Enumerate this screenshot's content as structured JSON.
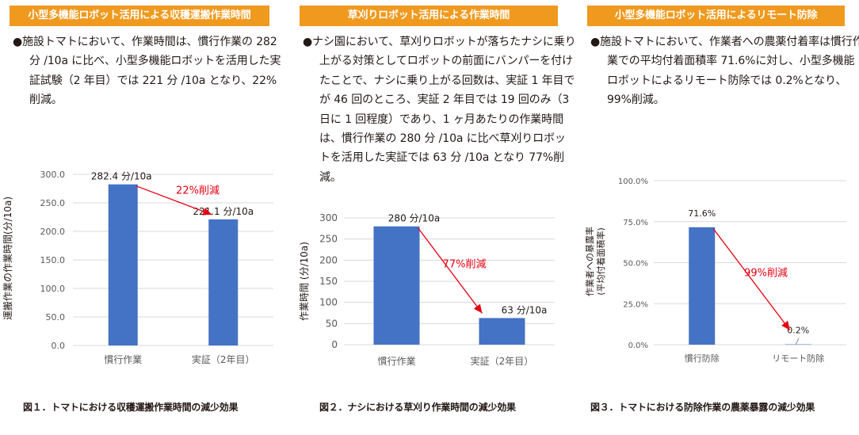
{
  "panels": [
    {
      "header": "小型多機能ロボット活用による収穫運搬作業時間",
      "bullet": "●",
      "text": "施設トマトにおいて、作業時間は、慣行作業の 282 分 /10a に比べ、小型多機能ロボットを活用した実証試験（2 年目）では 221 分 /10a となり、22%削減。",
      "caption": "図１．トマトにおける収穫運搬作業時間の減少効果"
    },
    {
      "header": "草刈りロボット活用による作業時間",
      "bullet": "●",
      "text": "ナシ園において、草刈りロボットが落ちたナシに乗り上がる対策としてロボットの前面にバンパーを付けたことで、ナシに乗り上がる回数は、実証 1 年目でが 46 回のところ、実証 2 年目では 19 回のみ（3 日に 1 回程度）であり、1 ヶ月あたりの作業時間は、慣行作業の 280 分 /10a に比べ草刈りロボットを活用した実証では 63 分 /10a となり 77%削減。",
      "caption": "図２．ナシにおける草刈り作業時間の減少効果"
    },
    {
      "header": "小型多機能ロボット活用によるリモート防除",
      "bullet": "●",
      "text": "施設トマトにおいて、作業者への農薬付着率は慣行作業での平均付着面積率 71.6%に対し、小型多機能ロボットによるリモート防除では 0.2%となり、99%削減。",
      "caption": "図３．トマトにおける防除作業の農薬暴露の減少効果"
    }
  ],
  "colors": {
    "bar": "#4472c4",
    "arrow": "#e60012",
    "header": "#ef9a1f",
    "grid": "#d9d9d9",
    "axis_text": "#595959"
  },
  "chart_data": [
    {
      "type": "bar",
      "categories": [
        "慣行作業",
        "実証（2年目）"
      ],
      "values": [
        282.4,
        221.1
      ],
      "data_labels": [
        "282.4 分/10a",
        "221.1 分/10a"
      ],
      "ylabel": "運搬作業の作業時間(分/10a)",
      "ylim": [
        0,
        300
      ],
      "yticks": [
        0,
        50,
        100,
        150,
        200,
        250,
        300
      ],
      "ytick_labels": [
        "0.0",
        "50.0",
        "100.0",
        "150.0",
        "200.0",
        "250.0",
        "300.0"
      ],
      "annotation": "22%削減",
      "grid": true
    },
    {
      "type": "bar",
      "categories": [
        "慣行作業",
        "実証（2年目）"
      ],
      "values": [
        280,
        63
      ],
      "data_labels": [
        "280 分/10a",
        "63 分/10a"
      ],
      "ylabel": "作業時間 (分/10a)",
      "ylim": [
        0,
        300
      ],
      "yticks": [
        0,
        50,
        100,
        150,
        200,
        250,
        300
      ],
      "ytick_labels": [
        "0",
        "50",
        "100",
        "150",
        "200",
        "250",
        "300"
      ],
      "annotation": "77%削減",
      "grid": true
    },
    {
      "type": "bar",
      "categories": [
        "慣行防除",
        "リモート防除"
      ],
      "values": [
        71.6,
        0.2
      ],
      "data_labels": [
        "71.6%",
        "0.2%"
      ],
      "ylabel": "作業者への暴露率",
      "ylabel2": "(平均付着面積率)",
      "ylim": [
        0,
        100
      ],
      "yticks": [
        0,
        25,
        50,
        75,
        100
      ],
      "ytick_labels": [
        "0.0%",
        "25.0%",
        "50.0%",
        "75.0%",
        "100.0%"
      ],
      "annotation": "99%削減",
      "grid": true
    }
  ]
}
